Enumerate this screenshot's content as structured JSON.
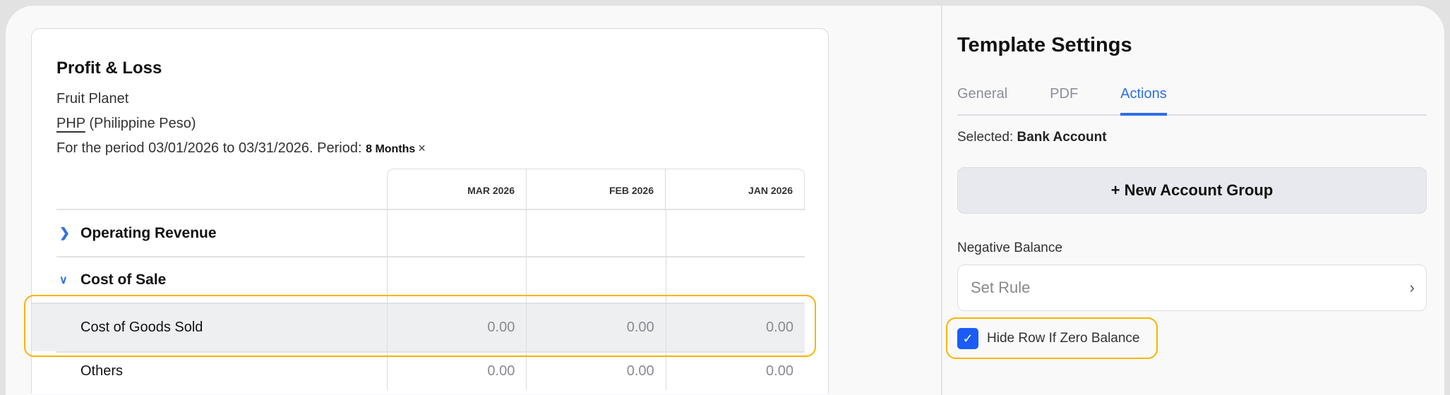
{
  "report": {
    "title": "Profit & Loss",
    "company": "Fruit Planet",
    "currency_code": "PHP",
    "currency_name": "(Philippine Peso)",
    "period_text": "For the period 03/01/2026 to 03/31/2026. Period:",
    "period_badge": "8 Months",
    "period_clear": "×",
    "columns": [
      "MAR 2026",
      "FEB 2026",
      "JAN 2026"
    ],
    "rows": [
      {
        "label": "Operating Revenue",
        "type": "group",
        "expanded": false,
        "icon": "chevron-right-icon",
        "values": [
          "",
          "",
          ""
        ]
      },
      {
        "label": "Cost of Sale",
        "type": "group",
        "expanded": true,
        "icon": "chevron-down-icon",
        "values": [
          "",
          "",
          ""
        ]
      },
      {
        "label": "Cost of Goods Sold",
        "type": "sub",
        "selected": true,
        "values": [
          "0.00",
          "0.00",
          "0.00"
        ]
      },
      {
        "label": "Others",
        "type": "sub",
        "values": [
          "0.00",
          "0.00",
          "0.00"
        ]
      }
    ]
  },
  "settings": {
    "title": "Template Settings",
    "tabs": [
      "General",
      "PDF",
      "Actions"
    ],
    "active_tab": "Actions",
    "selected_prefix": "Selected:",
    "selected_value": "Bank Account",
    "new_group_label": "+ New Account Group",
    "negative_balance_label": "Negative Balance",
    "set_rule_placeholder": "Set Rule",
    "hide_zero_label": "Hide Row If Zero Balance",
    "hide_zero_checked": true
  },
  "colors": {
    "accent": "#2f6fe8",
    "checkbox": "#1a5cf5",
    "highlight": "#f8b400"
  }
}
